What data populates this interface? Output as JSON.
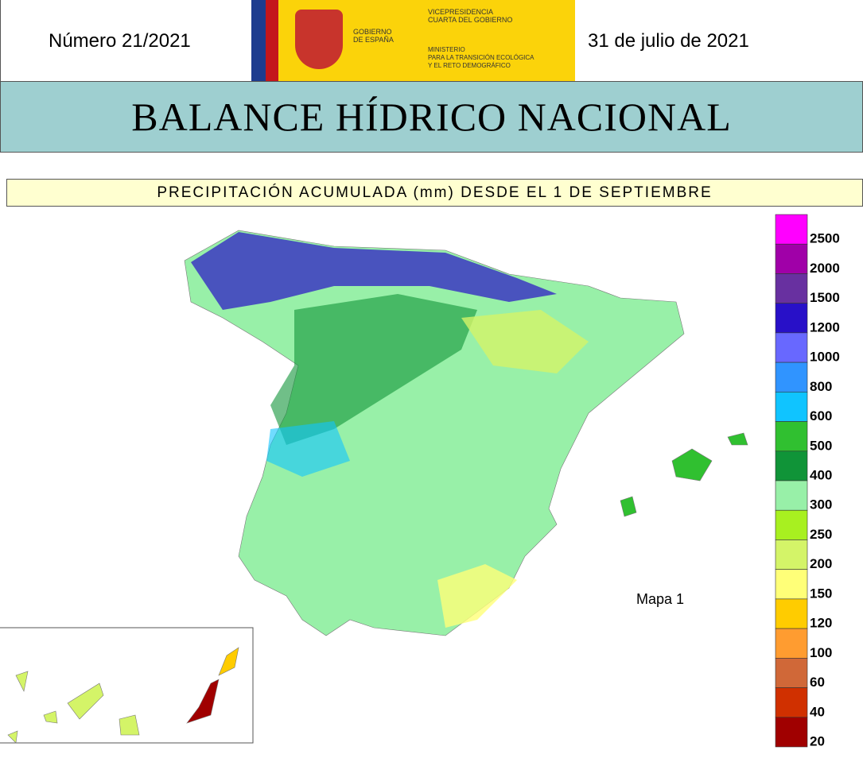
{
  "header": {
    "number": "Número 21/2021",
    "date": "31 de julio de 2021",
    "logo": {
      "gov": [
        "GOBIERNO",
        "DE ESPAÑA"
      ],
      "vice": [
        "VICEPRESIDENCIA",
        "CUARTA DEL GOBIERNO"
      ],
      "ministry": [
        "MINISTERIO",
        "PARA LA TRANSICIÓN ECOLÓGICA",
        "Y EL RETO DEMOGRÁFICO"
      ]
    }
  },
  "title": "BALANCE HÍDRICO NACIONAL",
  "subtitle": "PRECIPITACIÓN ACUMULADA (mm) DESDE EL 1 DE SEPTIEMBRE",
  "map": {
    "label": "Mapa 1",
    "legend": [
      {
        "label": "2500",
        "color": "#ff00ff"
      },
      {
        "label": "2000",
        "color": "#a000a8"
      },
      {
        "label": "1500",
        "color": "#6830a0"
      },
      {
        "label": "1200",
        "color": "#2810c8"
      },
      {
        "label": "1000",
        "color": "#6868ff"
      },
      {
        "label": "800",
        "color": "#3094ff"
      },
      {
        "label": "600",
        "color": "#10c4ff"
      },
      {
        "label": "500",
        "color": "#30c030"
      },
      {
        "label": "400",
        "color": "#109438"
      },
      {
        "label": "300",
        "color": "#98f0a8"
      },
      {
        "label": "250",
        "color": "#a8f020"
      },
      {
        "label": "200",
        "color": "#d4f468"
      },
      {
        "label": "150",
        "color": "#ffff78"
      },
      {
        "label": "120",
        "color": "#ffcc00"
      },
      {
        "label": "100",
        "color": "#ff9c30"
      },
      {
        "label": "60",
        "color": "#d06838"
      },
      {
        "label": "40",
        "color": "#d03000"
      },
      {
        "label": "20",
        "color": "#a00000"
      }
    ]
  }
}
